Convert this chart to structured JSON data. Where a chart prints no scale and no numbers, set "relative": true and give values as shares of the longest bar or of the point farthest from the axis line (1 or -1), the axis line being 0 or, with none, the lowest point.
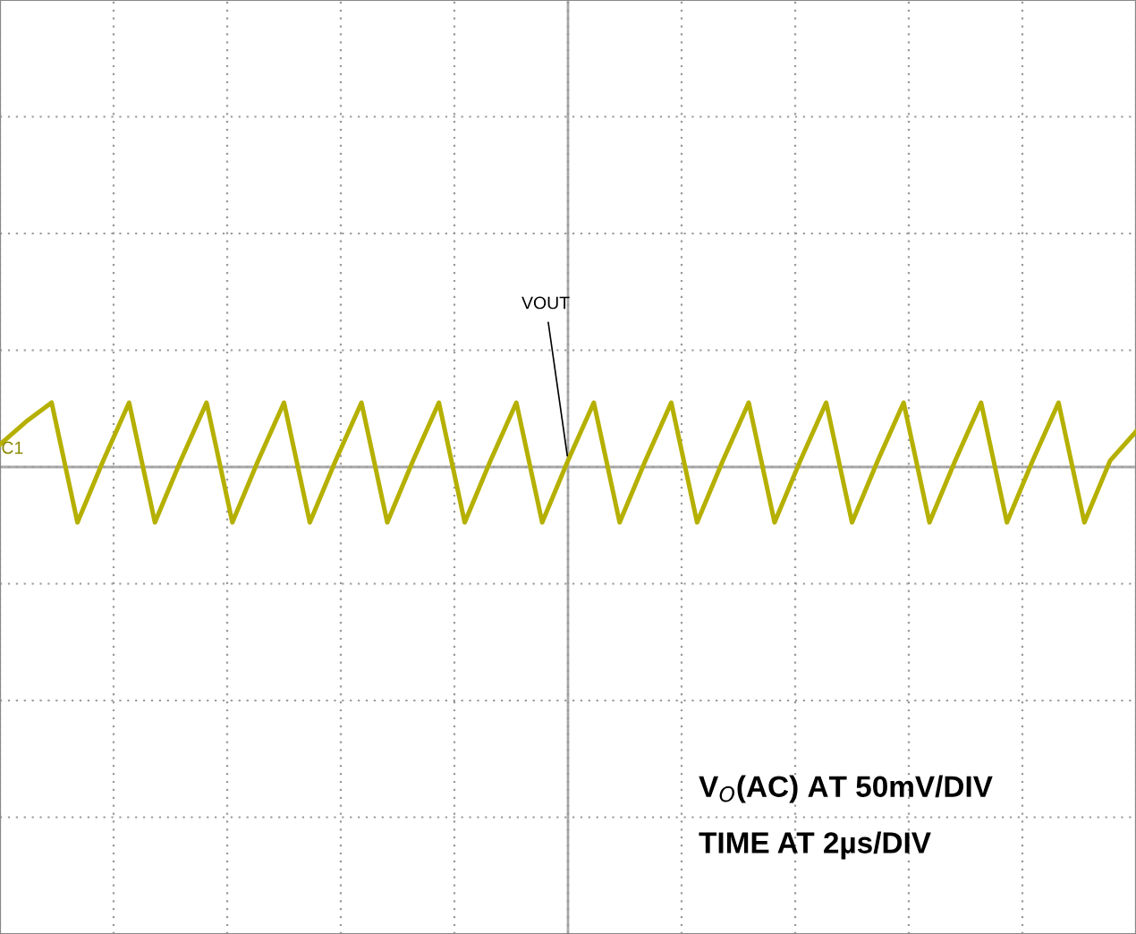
{
  "chart_data": {
    "type": "line",
    "relative": true,
    "grid": true,
    "marker": "none",
    "line_style": "solid",
    "categories": [
      null,
      null,
      null,
      null,
      null,
      null,
      null,
      null,
      null,
      null,
      null,
      null,
      null,
      null,
      null,
      null,
      null,
      null,
      null,
      null,
      null,
      null,
      null,
      null,
      null,
      null,
      null,
      null,
      null,
      null,
      null,
      null,
      null,
      null,
      null,
      null,
      null,
      null,
      null,
      null,
      null,
      null,
      null,
      null,
      null
    ],
    "series": [
      {
        "color": "#b5b000",
        "values": [
          0.35,
          0.7,
          1,
          -0.86,
          0.1,
          1,
          -0.86,
          0.1,
          1,
          -0.86,
          0.1,
          1,
          -0.86,
          0.1,
          1,
          -0.86,
          0.1,
          1,
          -0.86,
          0.1,
          1,
          -0.86,
          0.1,
          1,
          -0.86,
          0.1,
          1,
          -0.86,
          0.1,
          1,
          -0.86,
          0.1,
          1,
          -0.86,
          0.1,
          1,
          -0.86,
          0.1,
          1,
          -0.86,
          0.1,
          1,
          -0.86,
          0.1,
          0.55
        ]
      }
    ],
    "annotations": [
      "C1",
      "VOUT",
      "V$_{O}$(AC) AT 50mV/DIV",
      "TIME AT 2µs/DIV"
    ]
  }
}
